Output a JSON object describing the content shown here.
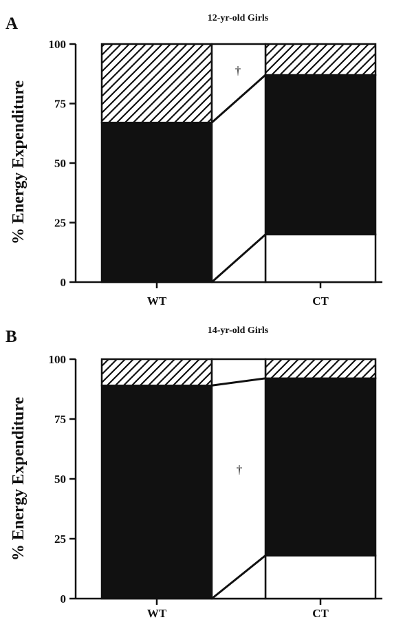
{
  "chart_data": [
    {
      "type": "bar",
      "panel": "A",
      "title": "12-yr-old Girls",
      "ylabel": "% Energy Expenditure",
      "xlabel": "",
      "ylim": [
        0,
        100
      ],
      "yticks": [
        0,
        25,
        50,
        75,
        100
      ],
      "categories": [
        "WT",
        "CT"
      ],
      "stacking": "stacked to 100%",
      "series": [
        {
          "pattern": "open",
          "values": [
            0,
            20
          ]
        },
        {
          "pattern": "solid",
          "values": [
            67,
            67
          ]
        },
        {
          "pattern": "hatched",
          "values": [
            33,
            13
          ]
        }
      ],
      "annotation": "†"
    },
    {
      "type": "bar",
      "panel": "B",
      "title": "14-yr-old Girls",
      "ylabel": "% Energy Expenditure",
      "xlabel": "",
      "ylim": [
        0,
        100
      ],
      "yticks": [
        0,
        25,
        50,
        75,
        100
      ],
      "categories": [
        "WT",
        "CT"
      ],
      "stacking": "stacked to 100%",
      "series": [
        {
          "pattern": "open",
          "values": [
            0,
            18
          ]
        },
        {
          "pattern": "solid",
          "values": [
            89,
            74
          ]
        },
        {
          "pattern": "hatched",
          "values": [
            11,
            8
          ]
        }
      ],
      "annotation": "†"
    }
  ],
  "colors": {
    "ink": "#111111",
    "open": "#ffffff",
    "solid": "#111111"
  }
}
